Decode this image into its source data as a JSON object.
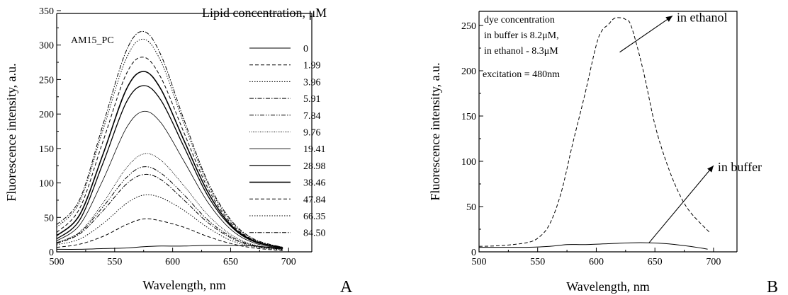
{
  "chart_data": [
    {
      "type": "line",
      "panel_letter": "A",
      "inset_label": "AM15_PC",
      "legend_title": "Lipid concentration, μM",
      "xlabel": "Wavelength, nm",
      "ylabel": "Fluorescence intensity, a.u.",
      "xlim": [
        500,
        720
      ],
      "ylim": [
        0,
        370
      ],
      "xticks": [
        "500",
        "550",
        "600",
        "650",
        "700"
      ],
      "yticks": [
        "0",
        "50",
        "100",
        "150",
        "200",
        "250",
        "300",
        "350"
      ],
      "legend_position": "right",
      "grid": false,
      "x": [
        500,
        520,
        540,
        560,
        575,
        590,
        610,
        630,
        650,
        670,
        695
      ],
      "series": [
        {
          "name": "0",
          "dash": "solid",
          "width": 1.0,
          "values": [
            4,
            4,
            5,
            6,
            8,
            9,
            9,
            10,
            10,
            9,
            5
          ]
        },
        {
          "name": "1.99",
          "dash": "dash",
          "width": 1.0,
          "values": [
            7,
            12,
            24,
            42,
            51,
            48,
            38,
            24,
            13,
            6,
            2
          ]
        },
        {
          "name": "3.96",
          "dash": "dot",
          "width": 1.0,
          "values": [
            11,
            20,
            44,
            75,
            88,
            84,
            64,
            38,
            18,
            8,
            3
          ]
        },
        {
          "name": "5.91",
          "dash": "dashdot",
          "width": 1.0,
          "values": [
            13,
            28,
            64,
            105,
            120,
            112,
            80,
            46,
            22,
            9,
            4
          ]
        },
        {
          "name": "7.84",
          "dash": "dashdotdot",
          "width": 1.0,
          "values": [
            14,
            30,
            70,
            115,
            132,
            122,
            88,
            50,
            24,
            10,
            4
          ]
        },
        {
          "name": "9.76",
          "dash": "shortdot",
          "width": 1.0,
          "values": [
            14,
            31,
            76,
            130,
            152,
            142,
            102,
            58,
            27,
            11,
            4
          ]
        },
        {
          "name": "19.41",
          "dash": "solid",
          "width": 0.8,
          "values": [
            17,
            42,
            112,
            192,
            218,
            200,
            140,
            78,
            35,
            14,
            5
          ]
        },
        {
          "name": "28.98",
          "dash": "solid",
          "width": 1.3,
          "values": [
            20,
            50,
            138,
            232,
            258,
            235,
            162,
            88,
            40,
            16,
            6
          ]
        },
        {
          "name": "38.46",
          "dash": "solid",
          "width": 1.6,
          "values": [
            25,
            58,
            152,
            252,
            280,
            252,
            172,
            94,
            42,
            17,
            6
          ]
        },
        {
          "name": "47.84",
          "dash": "dash",
          "width": 1.0,
          "values": [
            30,
            68,
            172,
            276,
            302,
            270,
            184,
            100,
            45,
            18,
            6
          ]
        },
        {
          "name": "66.35",
          "dash": "dot",
          "width": 1.0,
          "values": [
            38,
            78,
            190,
            300,
            330,
            295,
            198,
            106,
            48,
            19,
            7
          ]
        },
        {
          "name": "84.50",
          "dash": "dashdot",
          "width": 1.0,
          "values": [
            42,
            82,
            198,
            312,
            342,
            305,
            204,
            110,
            50,
            20,
            7
          ]
        }
      ]
    },
    {
      "type": "line",
      "panel_letter": "B",
      "xlabel": "Wavelength, nm",
      "ylabel": "Fluorescence intensity, a.u.",
      "xlim": [
        500,
        720
      ],
      "ylim": [
        0,
        265
      ],
      "xticks": [
        "500",
        "550",
        "600",
        "650",
        "700"
      ],
      "yticks": [
        "0",
        "50",
        "100",
        "150",
        "200",
        "250"
      ],
      "grid": false,
      "annotation_lines": [
        "dye concentration",
        "in buffer is 8.2μM,",
        "in ethanol - 8.3μM",
        "excitation = 480nm"
      ],
      "series": [
        {
          "name": "in ethanol",
          "dash": "dash",
          "x": [
            500,
            520,
            540,
            550,
            560,
            570,
            580,
            590,
            600,
            605,
            610,
            615,
            620,
            625,
            630,
            640,
            650,
            660,
            670,
            680,
            697
          ],
          "values": [
            6,
            7,
            10,
            15,
            30,
            65,
            120,
            172,
            228,
            244,
            250,
            257,
            258,
            256,
            248,
            200,
            140,
            98,
            66,
            44,
            21
          ]
        },
        {
          "name": "in buffer",
          "dash": "solid",
          "x": [
            500,
            520,
            540,
            560,
            575,
            590,
            610,
            630,
            645,
            660,
            680,
            695
          ],
          "values": [
            5,
            5,
            5,
            6,
            8,
            8,
            9,
            10,
            10,
            9,
            6,
            3
          ]
        }
      ],
      "arrows": [
        {
          "label": "in ethanol",
          "from": [
            620,
            220
          ],
          "to": [
            665,
            260
          ]
        },
        {
          "label": "in buffer",
          "from": [
            645,
            10
          ],
          "to": [
            700,
            95
          ]
        }
      ]
    }
  ]
}
